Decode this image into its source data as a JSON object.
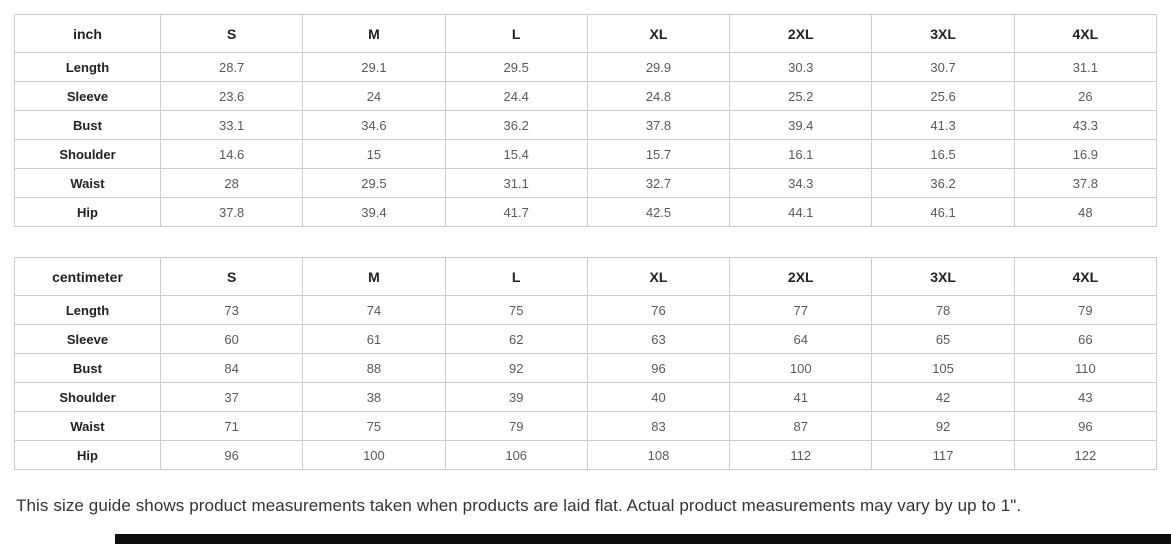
{
  "tables": [
    {
      "unit_label": "inch",
      "sizes": [
        "S",
        "M",
        "L",
        "XL",
        "2XL",
        "3XL",
        "4XL"
      ],
      "rows": [
        {
          "label": "Length",
          "values": [
            "28.7",
            "29.1",
            "29.5",
            "29.9",
            "30.3",
            "30.7",
            "31.1"
          ]
        },
        {
          "label": "Sleeve",
          "values": [
            "23.6",
            "24",
            "24.4",
            "24.8",
            "25.2",
            "25.6",
            "26"
          ]
        },
        {
          "label": "Bust",
          "values": [
            "33.1",
            "34.6",
            "36.2",
            "37.8",
            "39.4",
            "41.3",
            "43.3"
          ]
        },
        {
          "label": "Shoulder",
          "values": [
            "14.6",
            "15",
            "15.4",
            "15.7",
            "16.1",
            "16.5",
            "16.9"
          ]
        },
        {
          "label": "Waist",
          "values": [
            "28",
            "29.5",
            "31.1",
            "32.7",
            "34.3",
            "36.2",
            "37.8"
          ]
        },
        {
          "label": "Hip",
          "values": [
            "37.8",
            "39.4",
            "41.7",
            "42.5",
            "44.1",
            "46.1",
            "48"
          ]
        }
      ]
    },
    {
      "unit_label": "centimeter",
      "sizes": [
        "S",
        "M",
        "L",
        "XL",
        "2XL",
        "3XL",
        "4XL"
      ],
      "rows": [
        {
          "label": "Length",
          "values": [
            "73",
            "74",
            "75",
            "76",
            "77",
            "78",
            "79"
          ]
        },
        {
          "label": "Sleeve",
          "values": [
            "60",
            "61",
            "62",
            "63",
            "64",
            "65",
            "66"
          ]
        },
        {
          "label": "Bust",
          "values": [
            "84",
            "88",
            "92",
            "96",
            "100",
            "105",
            "110"
          ]
        },
        {
          "label": "Shoulder",
          "values": [
            "37",
            "38",
            "39",
            "40",
            "41",
            "42",
            "43"
          ]
        },
        {
          "label": "Waist",
          "values": [
            "71",
            "75",
            "79",
            "83",
            "87",
            "92",
            "96"
          ]
        },
        {
          "label": "Hip",
          "values": [
            "96",
            "100",
            "106",
            "108",
            "112",
            "117",
            "122"
          ]
        }
      ]
    }
  ],
  "note": "This size guide shows product measurements taken when products are laid flat. Actual product measurements may vary by up to 1\".",
  "colors": {
    "table_border": "#cccccc",
    "header_text": "#222222",
    "value_text": "#595959",
    "note_text": "#333333",
    "bottom_bar": "#0d0d0d"
  }
}
